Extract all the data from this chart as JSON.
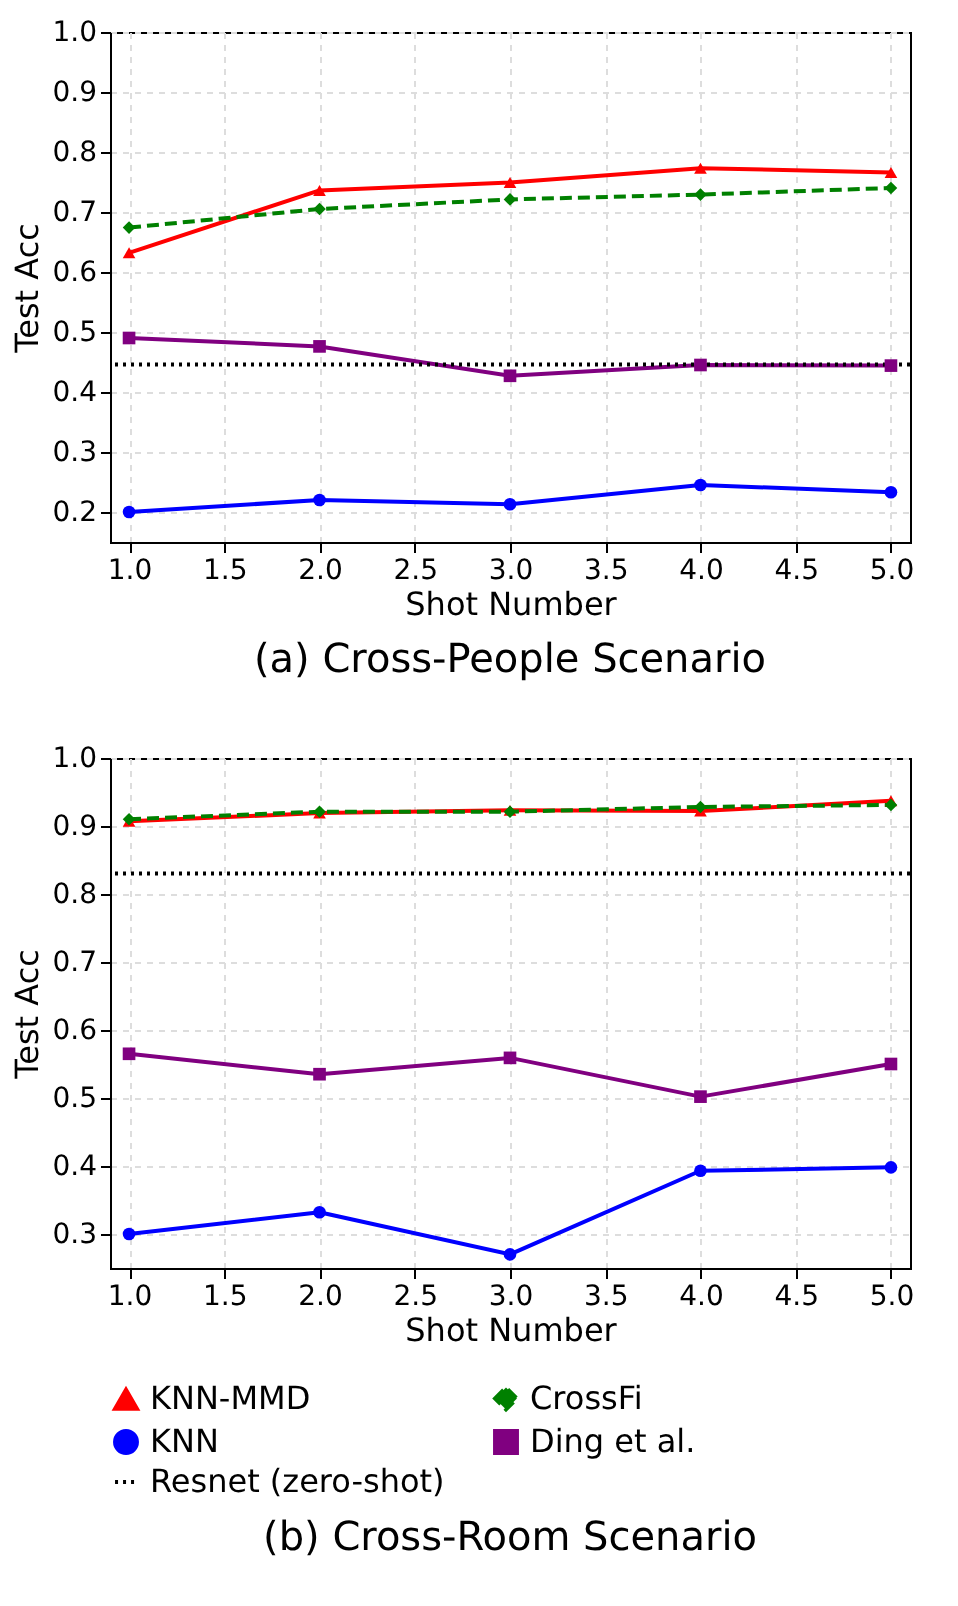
{
  "chart_data": [
    {
      "type": "line",
      "title": "(a) Cross-People Scenario",
      "xlabel": "Shot Number",
      "ylabel": "Test Acc",
      "xlim": [
        0.9,
        5.1
      ],
      "xticks": [
        {
          "value": 1,
          "label": "1.0"
        },
        1.5,
        {
          "value": 2,
          "label": "2.0"
        },
        2.5,
        {
          "value": 3,
          "label": "3.0"
        },
        3.5,
        {
          "value": 4,
          "label": "4.0"
        },
        4.5,
        {
          "value": 5,
          "label": "5.0"
        }
      ],
      "ylim": [
        0.15,
        1.0
      ],
      "yticks": [
        0.2,
        0.3,
        0.4,
        0.5,
        0.6,
        0.7,
        0.8,
        0.9,
        {
          "value": 1,
          "label": "1.0"
        }
      ],
      "grid": true,
      "x": [
        1,
        2,
        3,
        4,
        5
      ],
      "series": [
        {
          "color": "#ff0000",
          "marker": "triangle",
          "line_style": "solid",
          "values": [
            0.632,
            0.736,
            0.749,
            0.773,
            0.766
          ]
        },
        {
          "color": "#008000",
          "marker": "diamond",
          "line_style": "dashed",
          "values": [
            0.674,
            0.705,
            0.721,
            0.729,
            0.74
          ]
        },
        {
          "color": "#0000ff",
          "marker": "circle",
          "line_style": "solid",
          "values": [
            0.2,
            0.22,
            0.213,
            0.245,
            0.233
          ]
        },
        {
          "color": "#800080",
          "marker": "square",
          "line_style": "solid",
          "values": [
            0.49,
            0.476,
            0.427,
            0.445,
            0.444
          ]
        }
      ],
      "ref_lines": [
        {
          "axis": "y",
          "value": 0.446,
          "color": "#000000",
          "line_style": "dotted"
        }
      ]
    },
    {
      "type": "line",
      "title": "(b) Cross-Room Scenario",
      "xlabel": "Shot Number",
      "ylabel": "Test Acc",
      "xlim": [
        0.9,
        5.1
      ],
      "xticks": [
        {
          "value": 1,
          "label": "1.0"
        },
        1.5,
        {
          "value": 2,
          "label": "2.0"
        },
        2.5,
        {
          "value": 3,
          "label": "3.0"
        },
        3.5,
        {
          "value": 4,
          "label": "4.0"
        },
        4.5,
        {
          "value": 5,
          "label": "5.0"
        }
      ],
      "ylim": [
        0.25,
        1.0
      ],
      "yticks": [
        0.3,
        0.4,
        0.5,
        0.6,
        0.7,
        0.8,
        0.9,
        {
          "value": 1,
          "label": "1.0"
        }
      ],
      "grid": true,
      "legend": "bottom",
      "x": [
        1,
        2,
        3,
        4,
        5
      ],
      "series": [
        {
          "name": "KNN-MMD",
          "color": "#ff0000",
          "marker": "triangle",
          "line_style": "solid",
          "values": [
            0.907,
            0.919,
            0.923,
            0.922,
            0.937
          ]
        },
        {
          "name": "CrossFi",
          "color": "#008000",
          "marker": "diamond",
          "line_style": "dashed",
          "values": [
            0.91,
            0.921,
            0.921,
            0.928,
            0.931
          ]
        },
        {
          "name": "KNN",
          "color": "#0000ff",
          "marker": "circle",
          "line_style": "solid",
          "values": [
            0.3,
            0.332,
            0.27,
            0.393,
            0.398
          ]
        },
        {
          "name": "Ding et al.",
          "color": "#800080",
          "marker": "square",
          "line_style": "solid",
          "values": [
            0.565,
            0.535,
            0.559,
            0.502,
            0.55
          ]
        }
      ],
      "ref_lines": [
        {
          "axis": "y",
          "value": 0.83,
          "label": "Resnet (zero-shot)",
          "color": "#000000",
          "line_style": "dotted"
        }
      ]
    }
  ]
}
